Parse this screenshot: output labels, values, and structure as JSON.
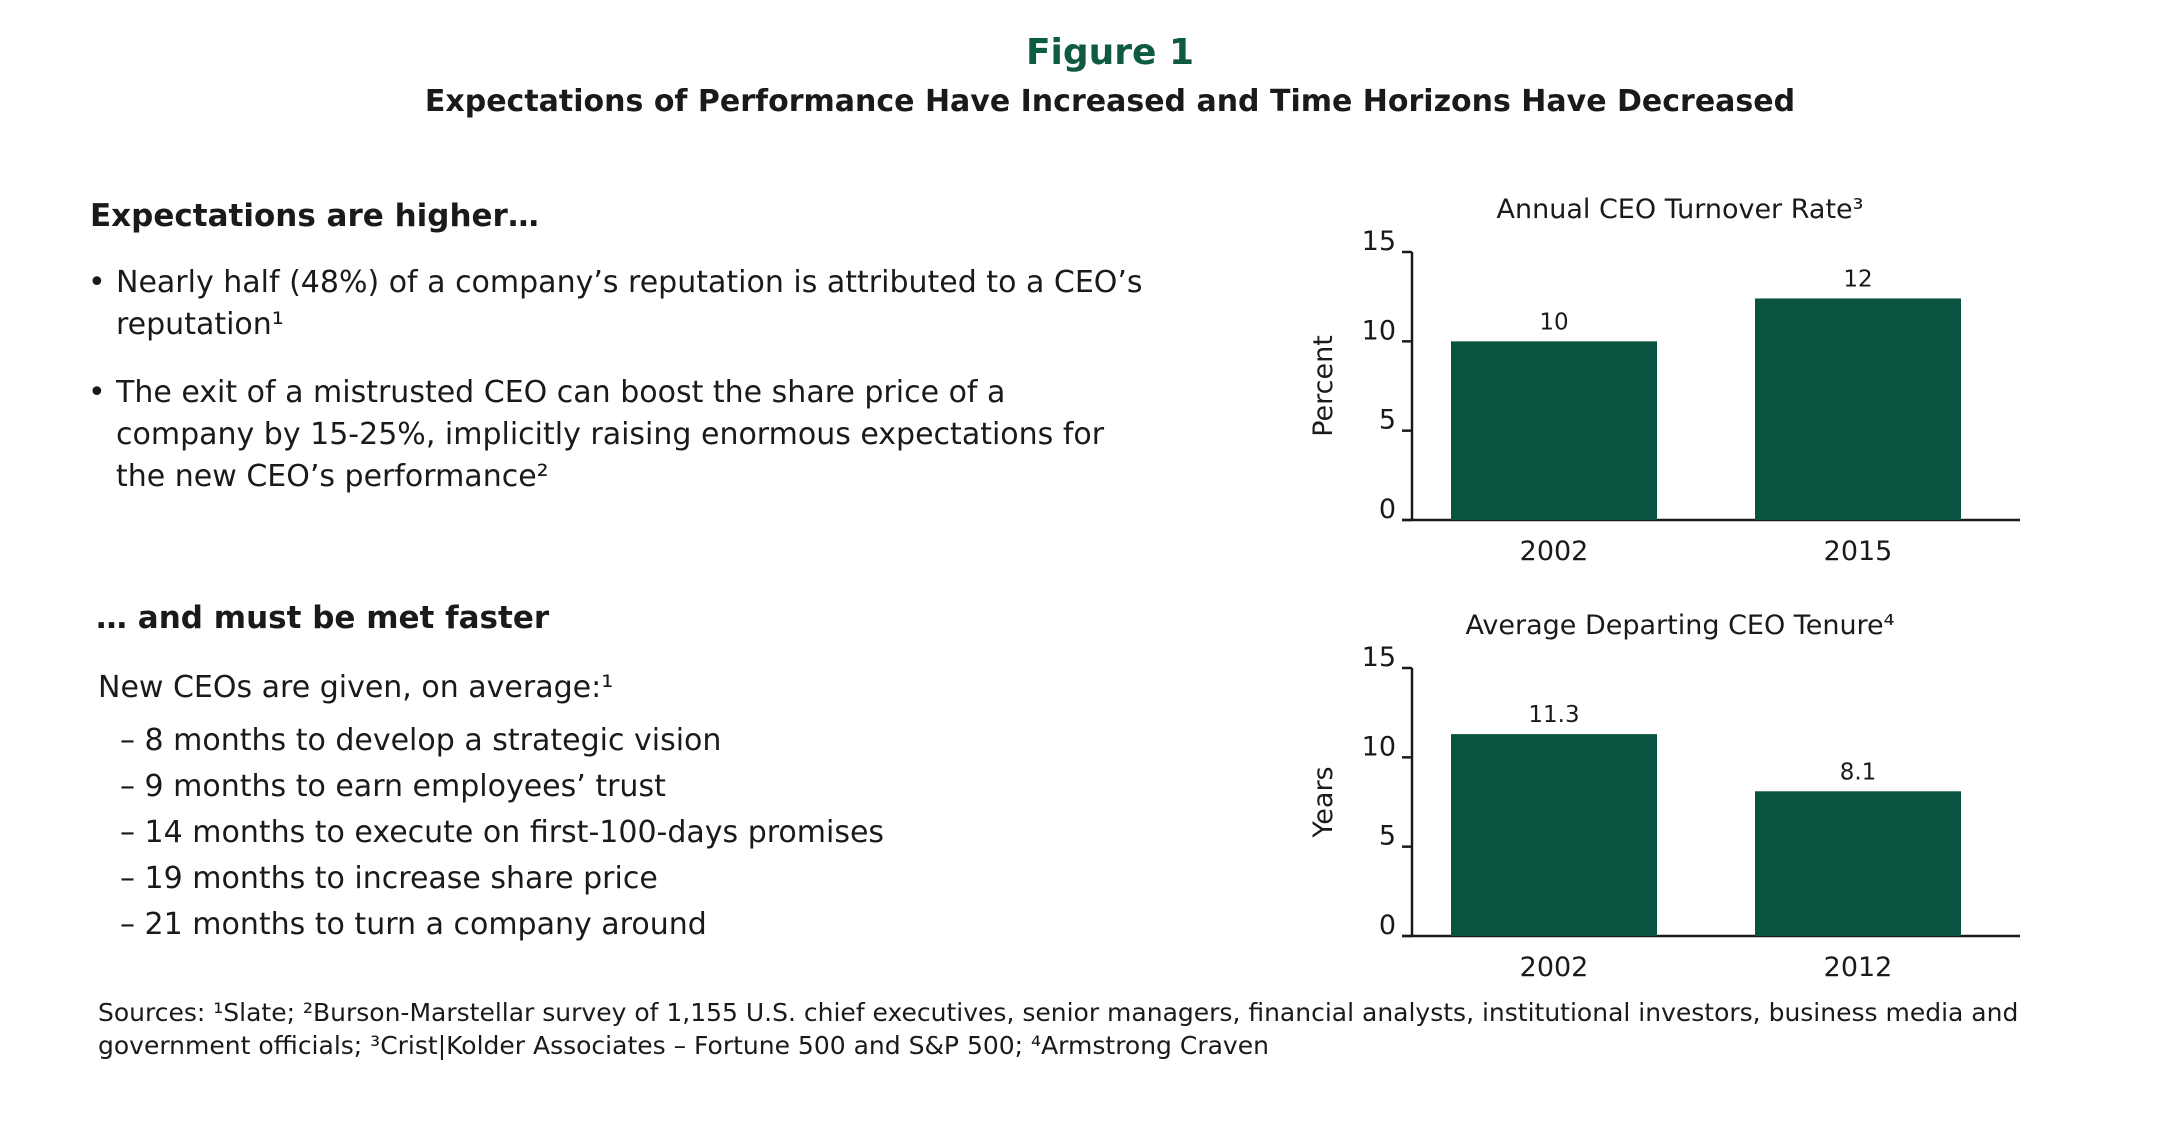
{
  "figure": {
    "label": "Figure 1",
    "title": "Expectations of Performance Have Increased and Time Horizons Have Decreased"
  },
  "left": {
    "heading1": "Expectations are higher…",
    "bullets": [
      {
        "dot": "•",
        "text": "Nearly half (48%) of a company’s reputation is attributed to a CEO’s reputation¹"
      },
      {
        "dot": "•",
        "text": "The exit of a mistrusted CEO can boost the share price of a company by 15-25%, implicitly raising enormous expectations for the new CEO’s performance²"
      }
    ],
    "heading2": "… and must be met faster",
    "intro": "New CEOs are given, on average:¹",
    "items": [
      "– 8 months to develop a strategic vision",
      "– 9 months to earn employees’ trust",
      "– 14 months to execute on first-100-days promises",
      "– 19 months to increase share price",
      "– 21 months to turn a company around"
    ]
  },
  "sources": "Sources: ¹Slate; ²Burson-Marstellar survey of 1,155 U.S. chief executives, senior managers, financial analysts, institutional investors, business media and government officials; ³Crist|Kolder Associates – Fortune 500 and S&P 500; ⁴Armstrong Craven",
  "colors": {
    "bar": "#0a5341",
    "accent": "#0f5a43",
    "axis": "#1a1a1a"
  },
  "chart_data": [
    {
      "type": "bar",
      "title": "Annual CEO Turnover Rate³",
      "ylabel": "Percent",
      "xlabel": "",
      "categories": [
        "2002",
        "2015"
      ],
      "values": [
        10,
        12.4
      ],
      "value_labels": [
        "10",
        "12"
      ],
      "yticks": [
        "0",
        "5",
        "10",
        "15"
      ],
      "ylim": [
        0,
        15
      ],
      "grid": false,
      "legend": "none"
    },
    {
      "type": "bar",
      "title": "Average Departing CEO Tenure⁴",
      "ylabel": "Years",
      "xlabel": "",
      "categories": [
        "2002",
        "2012"
      ],
      "values": [
        11.3,
        8.1
      ],
      "value_labels": [
        "11.3",
        "8.1"
      ],
      "yticks": [
        "0",
        "5",
        "10",
        "15"
      ],
      "ylim": [
        0,
        15
      ],
      "grid": false,
      "legend": "none"
    }
  ]
}
